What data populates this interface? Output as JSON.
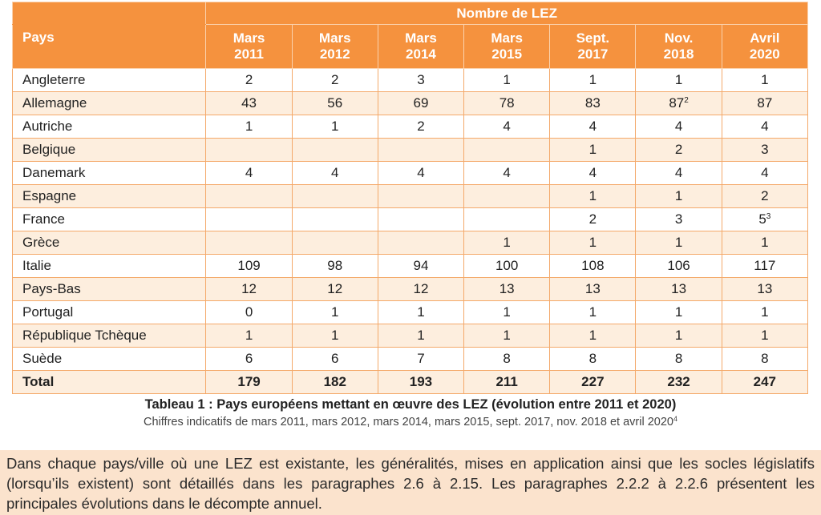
{
  "table": {
    "group_header": "Nombre de LEZ",
    "country_header": "Pays",
    "columns": [
      {
        "l1": "Mars",
        "l2": "2011"
      },
      {
        "l1": "Mars",
        "l2": "2012"
      },
      {
        "l1": "Mars",
        "l2": "2014"
      },
      {
        "l1": "Mars",
        "l2": "2015"
      },
      {
        "l1": "Sept.",
        "l2": "2017"
      },
      {
        "l1": "Nov.",
        "l2": "2018"
      },
      {
        "l1": "Avril",
        "l2": "2020"
      }
    ],
    "rows": [
      {
        "country": "Angleterre",
        "values": [
          "2",
          "2",
          "3",
          "1",
          "1",
          "1",
          "1"
        ]
      },
      {
        "country": "Allemagne",
        "values": [
          "43",
          "56",
          "69",
          "78",
          "83",
          "87",
          "87"
        ],
        "sups": {
          "5": "2"
        }
      },
      {
        "country": "Autriche",
        "values": [
          "1",
          "1",
          "2",
          "4",
          "4",
          "4",
          "4"
        ]
      },
      {
        "country": "Belgique",
        "values": [
          "",
          "",
          "",
          "",
          "1",
          "2",
          "3"
        ]
      },
      {
        "country": "Danemark",
        "values": [
          "4",
          "4",
          "4",
          "4",
          "4",
          "4",
          "4"
        ]
      },
      {
        "country": "Espagne",
        "values": [
          "",
          "",
          "",
          "",
          "1",
          "1",
          "2"
        ]
      },
      {
        "country": "France",
        "values": [
          "",
          "",
          "",
          "",
          "2",
          "3",
          "5"
        ],
        "sups": {
          "6": "3"
        }
      },
      {
        "country": "Grèce",
        "values": [
          "",
          "",
          "",
          "1",
          "1",
          "1",
          "1"
        ]
      },
      {
        "country": "Italie",
        "values": [
          "109",
          "98",
          "94",
          "100",
          "108",
          "106",
          "117"
        ]
      },
      {
        "country": "Pays-Bas",
        "values": [
          "12",
          "12",
          "12",
          "13",
          "13",
          "13",
          "13"
        ]
      },
      {
        "country": "Portugal",
        "values": [
          "0",
          "1",
          "1",
          "1",
          "1",
          "1",
          "1"
        ]
      },
      {
        "country": "République Tchèque",
        "values": [
          "1",
          "1",
          "1",
          "1",
          "1",
          "1",
          "1"
        ]
      },
      {
        "country": "Suède",
        "values": [
          "6",
          "6",
          "7",
          "8",
          "8",
          "8",
          "8"
        ]
      }
    ],
    "total": {
      "label": "Total",
      "values": [
        "179",
        "182",
        "193",
        "211",
        "227",
        "232",
        "247"
      ]
    }
  },
  "caption": "Tableau 1 : Pays européens mettant en œuvre des LEZ (évolution entre 2011 et 2020)",
  "subcaption": "Chiffres indicatifs de mars 2011, mars 2012, mars 2014, mars 2015, sept. 2017, nov. 2018 et avril 2020",
  "subcaption_sup": "4",
  "paragraph": "Dans chaque pays/ville où une LEZ est existante, les généralités, mises en application ainsi que les socles législatifs (lorsqu’ils existent) sont détaillés dans les paragraphes 2.6 à 2.15. Les paragraphes 2.2.2 à 2.2.6 présentent les principales évolutions dans le décompte annuel.",
  "colors": {
    "header_bg": "#f5923e",
    "alt_row_bg": "#fdeede",
    "border": "#f4a96a",
    "paragraph_bg": "#fbe3cd"
  }
}
